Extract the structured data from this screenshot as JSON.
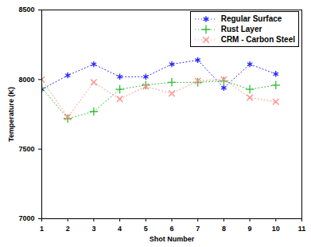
{
  "chart_data": {
    "type": "line",
    "x": [
      1,
      2,
      3,
      4,
      5,
      6,
      7,
      8,
      9,
      10
    ],
    "xlim": [
      1,
      11
    ],
    "xticks": [
      1,
      2,
      3,
      4,
      5,
      6,
      7,
      8,
      9,
      10,
      11
    ],
    "ylim": [
      7000,
      8500
    ],
    "yticks": [
      7000,
      7500,
      8000,
      8500
    ],
    "xlabel": "Shot Number",
    "ylabel": "Temperature (K)",
    "legend": "upper right",
    "grid": false,
    "series": [
      {
        "name": "Regular Surface",
        "color": "#2020ff",
        "marker": "asterisk",
        "line_style": "dotted",
        "values": [
          7930,
          8030,
          8110,
          8020,
          8020,
          8110,
          8140,
          7940,
          8110,
          8040
        ]
      },
      {
        "name": "Rust Layer",
        "color": "#33bb33",
        "marker": "plus",
        "line_style": "dotted",
        "values": [
          7940,
          7720,
          7770,
          7930,
          7960,
          7980,
          7980,
          7990,
          7930,
          7960
        ]
      },
      {
        "name": "CRM - Carbon Steel",
        "color": "#ff8c8c",
        "marker": "times",
        "line_style": "dotted",
        "values": [
          8000,
          7730,
          7980,
          7860,
          7950,
          7900,
          7990,
          8000,
          7870,
          7840
        ]
      }
    ]
  }
}
